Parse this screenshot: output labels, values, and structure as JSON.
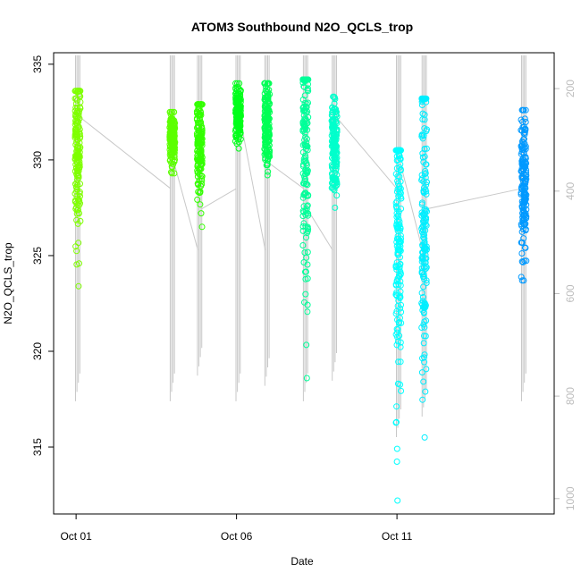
{
  "chart_data": {
    "type": "scatter",
    "title": "ATOM3 Southbound N2O_QCLS_trop",
    "xlabel": "Date",
    "ylabel": "N2O_QCLS_trop",
    "x_ticks": [
      "Oct 01",
      "Oct 06",
      "Oct 11"
    ],
    "x_tick_days": [
      1,
      6,
      11
    ],
    "xlim": [
      0.3,
      15.9
    ],
    "y_ticks": [
      315,
      320,
      325,
      330,
      335
    ],
    "ylim": [
      311.5,
      335.6
    ],
    "y2_ticks": [
      200,
      400,
      600,
      800,
      1000
    ],
    "y2lim": [
      1030,
      130
    ],
    "y2_axis_color": "#bdbdbd",
    "profile_line_color": "#c8c8c8",
    "point_marker": "open-circle",
    "grid": false,
    "legend": "none",
    "flights": [
      {
        "day": 1.05,
        "n2o_range": [
          323.4,
          333.6
        ],
        "n2o_center": 330.5,
        "pressure_min": 135,
        "pressure_max": 810,
        "color": "#7fff00"
      },
      {
        "day": 4.0,
        "n2o_range": [
          329.3,
          332.5
        ],
        "n2o_center": 331.2,
        "pressure_min": 135,
        "pressure_max": 810,
        "color": "#5cff00"
      },
      {
        "day": 4.85,
        "n2o_range": [
          326.5,
          332.9
        ],
        "n2o_center": 330.9,
        "pressure_min": 135,
        "pressure_max": 760,
        "color": "#33ff00"
      },
      {
        "day": 6.05,
        "n2o_range": [
          330.6,
          334.0
        ],
        "n2o_center": 332.4,
        "pressure_min": 135,
        "pressure_max": 810,
        "color": "#00ff1a"
      },
      {
        "day": 6.95,
        "n2o_range": [
          329.2,
          334.0
        ],
        "n2o_center": 331.9,
        "pressure_min": 135,
        "pressure_max": 780,
        "color": "#00ff55"
      },
      {
        "day": 8.15,
        "n2o_range": [
          318.6,
          334.2
        ],
        "n2o_center": 331.0,
        "pressure_min": 135,
        "pressure_max": 810,
        "color": "#00ff99"
      },
      {
        "day": 9.05,
        "n2o_range": [
          327.5,
          333.3
        ],
        "n2o_center": 330.8,
        "pressure_min": 135,
        "pressure_max": 770,
        "color": "#00ffcc"
      },
      {
        "day": 11.05,
        "n2o_range": [
          312.2,
          330.5
        ],
        "n2o_center": 326.0,
        "pressure_min": 135,
        "pressure_max": 880,
        "color": "#00ffff"
      },
      {
        "day": 11.85,
        "n2o_range": [
          315.5,
          333.2
        ],
        "n2o_center": 327.5,
        "pressure_min": 135,
        "pressure_max": 840,
        "color": "#00eeff"
      },
      {
        "day": 14.95,
        "n2o_range": [
          323.7,
          332.6
        ],
        "n2o_center": 328.5,
        "pressure_min": 135,
        "pressure_max": 810,
        "color": "#0099ff"
      }
    ]
  }
}
